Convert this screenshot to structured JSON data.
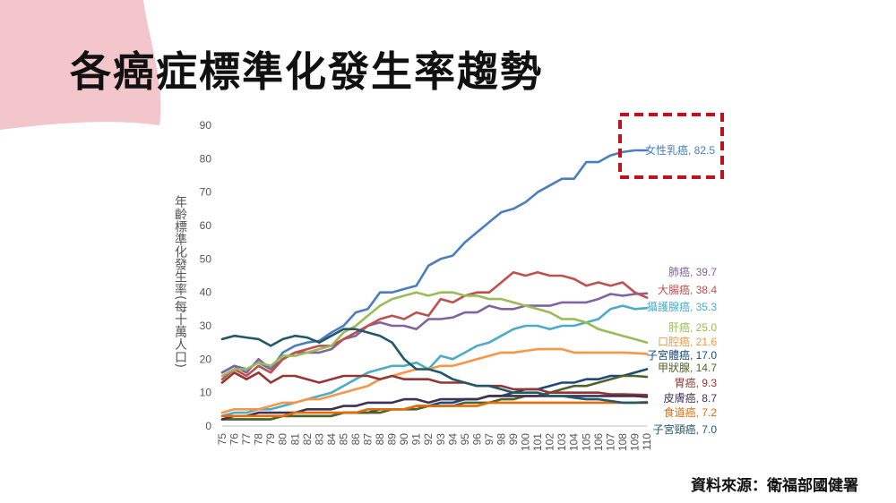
{
  "slide": {
    "title": "各癌症標準化發生率趨勢",
    "source": "資料來源：衛福部國健署"
  },
  "colors": {
    "highlight_box": "#c0121a",
    "corner_decoration": "#f3c6cc"
  },
  "chart_data": {
    "type": "line",
    "title": "",
    "ylabel": "年齡標準化發生率(每十萬人口)",
    "xlabel": "",
    "ylim": [
      0,
      90
    ],
    "yticks": [
      0,
      10,
      20,
      30,
      40,
      50,
      60,
      70,
      80,
      90
    ],
    "grid": false,
    "legend": "end-of-line labels",
    "x": [
      75,
      76,
      77,
      78,
      79,
      80,
      81,
      82,
      83,
      84,
      85,
      86,
      87,
      88,
      89,
      90,
      91,
      92,
      93,
      94,
      95,
      96,
      97,
      98,
      99,
      100,
      101,
      102,
      103,
      104,
      105,
      106,
      107,
      108,
      109,
      110
    ],
    "series": [
      {
        "name": "女性乳癌",
        "label": "女性乳癌, 82.5",
        "color": "#4a7ebf",
        "values": [
          16,
          18,
          17,
          19,
          17,
          22,
          24,
          25,
          25.5,
          28,
          30,
          34,
          35,
          40,
          40,
          41,
          42,
          48,
          50,
          51,
          55,
          58,
          61,
          64,
          65,
          67,
          70,
          72,
          74,
          74,
          79,
          79,
          81,
          82,
          82.5,
          82.5
        ]
      },
      {
        "name": "肺癌",
        "label": "肺癌, 39.7",
        "color": "#8064a2",
        "values": [
          16,
          18,
          16,
          20,
          17,
          20,
          22,
          22,
          22,
          23,
          26,
          27,
          30,
          31,
          30,
          30,
          29,
          32,
          32,
          32.5,
          34,
          34,
          36,
          35,
          35,
          36,
          36,
          36,
          37,
          37,
          37,
          38,
          39.5,
          39,
          39.5,
          39.7
        ]
      },
      {
        "name": "大腸癌",
        "label": "大腸癌, 38.4",
        "color": "#c0504d",
        "values": [
          14,
          17,
          15,
          18,
          16,
          20,
          22,
          23,
          24,
          24,
          26,
          28,
          30,
          32,
          33,
          32,
          34,
          33,
          38,
          37,
          39,
          40,
          40,
          43,
          46,
          45,
          46,
          45,
          45,
          44,
          42,
          43,
          42,
          43,
          40,
          38.4
        ]
      },
      {
        "name": "攝護腺癌",
        "label": "攝護腺癌, 35.3",
        "color": "#4bacc6",
        "values": [
          3,
          4,
          4,
          5,
          5,
          6,
          7,
          8,
          9,
          10,
          12,
          14,
          16,
          17,
          18,
          18,
          19,
          17,
          21,
          20,
          22,
          24,
          25,
          27,
          29,
          30,
          30,
          29,
          30,
          30,
          31,
          32,
          35,
          36,
          35,
          35.3
        ]
      },
      {
        "name": "肝癌",
        "label": "肝癌, 25.0",
        "color": "#9bbb59",
        "values": [
          15,
          17,
          17,
          19,
          18,
          21,
          21,
          22,
          23,
          24,
          28,
          30,
          33,
          36,
          38,
          39,
          40,
          39,
          40,
          40,
          39,
          39,
          38,
          38,
          37,
          36,
          35,
          34,
          32,
          32,
          31,
          29,
          28,
          27,
          26,
          25
        ]
      },
      {
        "name": "口腔癌",
        "label": "口腔癌, 21.6",
        "color": "#f79646",
        "values": [
          4,
          5,
          5,
          5,
          6,
          7,
          7,
          8,
          8,
          9,
          10,
          11,
          12,
          14,
          15,
          16,
          17,
          17,
          18,
          18,
          19,
          20,
          21,
          22,
          22,
          22.5,
          23,
          23,
          23,
          22,
          22,
          22,
          22,
          22,
          21.8,
          21.6
        ]
      },
      {
        "name": "子宮體癌",
        "label": "子宮體癌, 17.0",
        "color": "#1f497d",
        "values": [
          2,
          2,
          2,
          2,
          2,
          3,
          3,
          3,
          3,
          3,
          4,
          4,
          4,
          5,
          5,
          5,
          6,
          6,
          7,
          7,
          8,
          8,
          9,
          9,
          10,
          11,
          11,
          12,
          13,
          13,
          14,
          14,
          15,
          15,
          16,
          17
        ]
      },
      {
        "name": "甲狀腺",
        "label": "甲狀腺, 14.7",
        "color": "#4f6228",
        "values": [
          2,
          2,
          2,
          2,
          2,
          3,
          3,
          3,
          3,
          3,
          4,
          4,
          4,
          4,
          5,
          5,
          5,
          6,
          6,
          6,
          7,
          7,
          7,
          8,
          8,
          9,
          9,
          10,
          11,
          12,
          12,
          13,
          14,
          15,
          15,
          14.7
        ]
      },
      {
        "name": "胃癌",
        "label": "胃癌, 9.3",
        "color": "#943634",
        "values": [
          13,
          16,
          14,
          16,
          13,
          15,
          15,
          14,
          13,
          14,
          15,
          15,
          15,
          14,
          15,
          14,
          14,
          14,
          13,
          13,
          13,
          12,
          12,
          12,
          11,
          11,
          11,
          10,
          10,
          10,
          10,
          10,
          9.5,
          9.5,
          9.4,
          9.3
        ]
      },
      {
        "name": "皮膚癌",
        "label": "皮膚癌, 8.7",
        "color": "#403151",
        "values": [
          2,
          3,
          3,
          4,
          4,
          4,
          4,
          5,
          5,
          5,
          6,
          6,
          7,
          7,
          7,
          8,
          8,
          7,
          8,
          8,
          8,
          8,
          9,
          9,
          9,
          9,
          9,
          9,
          9,
          9,
          9,
          9,
          9,
          9,
          9,
          8.7
        ]
      },
      {
        "name": "食道癌",
        "label": "食道癌, 7.2",
        "color": "#e46c0a",
        "values": [
          3,
          3,
          3,
          3,
          3,
          3,
          4,
          4,
          4,
          4,
          4,
          4,
          5,
          5,
          5,
          5,
          6,
          6,
          6,
          6,
          6,
          6,
          7,
          7,
          7,
          7,
          7,
          7,
          7,
          7,
          7,
          7,
          7,
          7,
          7,
          7.2
        ]
      },
      {
        "name": "子宮頸癌",
        "label": "子宮頸癌, 7.0",
        "color": "#215968",
        "values": [
          26,
          27,
          26.5,
          26,
          24,
          26,
          27,
          26.5,
          25,
          27,
          29,
          29,
          28,
          27,
          25,
          20,
          17,
          17,
          16,
          14,
          13,
          12,
          12,
          11,
          10,
          10,
          10,
          9,
          9,
          8.5,
          8,
          8,
          7.5,
          7,
          7,
          7
        ]
      }
    ]
  }
}
